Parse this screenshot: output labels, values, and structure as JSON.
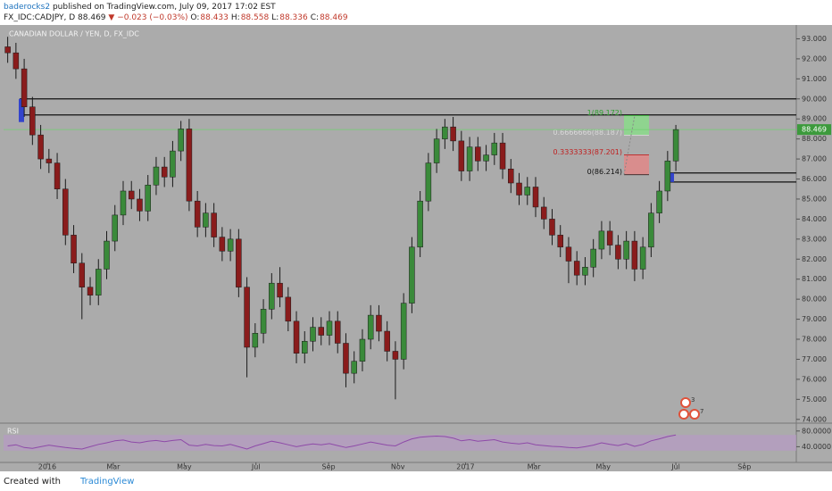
{
  "header": {
    "publisher": "baderocks2",
    "published": "published on TradingView.com, July 09, 2017 17:02 EST",
    "symbol": "FX_IDC:CADJPY, D",
    "last": "88.469",
    "arrow": "▼",
    "change": "−0.023 (−0.03%)",
    "ohlc": [
      {
        "label": "O:",
        "value": "88.433"
      },
      {
        "label": "H:",
        "value": "88.558"
      },
      {
        "label": "L:",
        "value": "88.336"
      },
      {
        "label": "C:",
        "value": "88.469"
      }
    ]
  },
  "footer": {
    "created": "Created with",
    "brand": "TradingView"
  },
  "badges": [
    "3",
    "7"
  ],
  "chart_data": [
    {
      "type": "candlestick",
      "title": "CANADIAN DOLLAR / YEN, D, FX_IDC",
      "up_color": "#3a8a3a",
      "down_color": "#8a1c1c",
      "open": [
        92.6,
        92.3,
        91.5,
        89.6,
        88.2,
        87.0,
        86.8,
        85.5,
        83.2,
        81.8,
        80.6,
        80.2,
        81.5,
        82.9,
        84.2,
        85.4,
        85.0,
        84.4,
        85.7,
        86.6,
        86.1,
        87.4,
        88.5,
        84.9,
        83.6,
        84.3,
        83.1,
        82.4,
        83.0,
        80.6,
        77.6,
        78.3,
        79.5,
        80.8,
        80.1,
        78.9,
        77.3,
        77.9,
        78.6,
        78.2,
        78.9,
        77.8,
        76.3,
        76.9,
        78.0,
        79.2,
        78.4,
        77.4,
        77.0,
        79.8,
        82.6,
        84.9,
        86.8,
        88.0,
        88.6,
        87.9,
        86.4,
        87.6,
        86.9,
        87.2,
        87.8,
        86.5,
        85.8,
        85.2,
        85.6,
        84.6,
        84.0,
        83.2,
        82.6,
        81.9,
        81.2,
        81.6,
        82.5,
        83.4,
        82.7,
        82.0,
        82.9,
        81.5,
        82.6,
        84.3,
        85.4,
        86.9
      ],
      "high": [
        93.1,
        92.8,
        92.0,
        90.1,
        88.7,
        87.5,
        87.3,
        86.0,
        83.7,
        82.3,
        81.1,
        82.0,
        83.4,
        84.7,
        85.9,
        85.9,
        85.5,
        86.2,
        87.1,
        87.1,
        87.9,
        88.9,
        89.0,
        85.4,
        84.8,
        84.8,
        83.6,
        83.5,
        83.5,
        81.1,
        78.8,
        80.0,
        81.3,
        81.6,
        80.6,
        79.4,
        78.4,
        79.1,
        79.1,
        79.4,
        79.4,
        78.3,
        77.4,
        78.5,
        79.7,
        79.7,
        78.9,
        77.9,
        80.3,
        83.1,
        85.4,
        87.3,
        88.5,
        89.0,
        89.1,
        88.4,
        88.1,
        88.1,
        87.7,
        88.3,
        88.3,
        87.0,
        86.3,
        86.1,
        86.1,
        85.1,
        84.5,
        83.7,
        83.1,
        82.4,
        82.1,
        83.0,
        83.9,
        83.9,
        83.2,
        83.4,
        83.4,
        83.1,
        84.8,
        85.9,
        87.4,
        88.7
      ],
      "low": [
        91.8,
        91.0,
        89.1,
        87.7,
        86.5,
        86.3,
        85.0,
        82.7,
        81.3,
        79.0,
        79.7,
        79.7,
        81.0,
        82.4,
        83.7,
        84.5,
        83.9,
        83.9,
        85.2,
        85.6,
        85.6,
        86.9,
        84.4,
        83.1,
        83.1,
        82.6,
        81.9,
        81.9,
        80.1,
        76.1,
        77.1,
        77.8,
        79.0,
        79.6,
        78.4,
        76.8,
        76.8,
        77.4,
        77.7,
        77.7,
        77.3,
        75.6,
        75.8,
        76.4,
        77.5,
        77.9,
        76.9,
        75.0,
        76.5,
        79.3,
        82.1,
        84.4,
        86.3,
        87.5,
        87.4,
        85.9,
        85.9,
        86.4,
        86.4,
        86.7,
        86.0,
        85.3,
        84.7,
        84.7,
        84.1,
        83.5,
        82.7,
        82.1,
        80.8,
        80.7,
        80.7,
        81.1,
        82.0,
        82.2,
        81.5,
        81.5,
        80.9,
        81.0,
        82.1,
        83.8,
        84.9,
        86.4
      ],
      "close": [
        92.3,
        91.5,
        89.6,
        88.2,
        87.0,
        86.8,
        85.5,
        83.2,
        81.8,
        80.6,
        80.2,
        81.5,
        82.9,
        84.2,
        85.4,
        85.0,
        84.4,
        85.7,
        86.6,
        86.1,
        87.4,
        88.5,
        84.9,
        83.6,
        84.3,
        83.1,
        82.4,
        83.0,
        80.6,
        77.6,
        78.3,
        79.5,
        80.8,
        80.1,
        78.9,
        77.3,
        77.9,
        78.6,
        78.2,
        78.9,
        77.8,
        76.3,
        76.9,
        78.0,
        79.2,
        78.4,
        77.4,
        77.0,
        79.8,
        82.6,
        84.9,
        86.8,
        88.0,
        88.6,
        87.9,
        86.4,
        87.6,
        86.9,
        87.2,
        87.8,
        86.5,
        85.8,
        85.2,
        85.6,
        84.6,
        84.0,
        83.2,
        82.6,
        81.9,
        81.2,
        81.6,
        82.5,
        83.4,
        82.7,
        82.0,
        82.9,
        81.5,
        82.6,
        84.3,
        85.4,
        86.9,
        88.469
      ],
      "xlim": [
        -0.5,
        95.6
      ],
      "xticks": [
        {
          "value": 4.8,
          "label": "2016"
        },
        {
          "value": 12.8,
          "label": "Mar"
        },
        {
          "value": 21.4,
          "label": "May"
        },
        {
          "value": 30.1,
          "label": "Jul"
        },
        {
          "value": 38.9,
          "label": "Sep"
        },
        {
          "value": 47.3,
          "label": "Nov"
        },
        {
          "value": 55.5,
          "label": "2017"
        },
        {
          "value": 63.8,
          "label": "Mar"
        },
        {
          "value": 72.2,
          "label": "May"
        },
        {
          "value": 81.0,
          "label": "Jul"
        },
        {
          "value": 89.3,
          "label": "Sep"
        }
      ],
      "ylim": [
        73.9,
        93.6
      ],
      "yticks": [
        {
          "value": 93,
          "label": "93.000"
        },
        {
          "value": 92,
          "label": "92.000"
        },
        {
          "value": 91,
          "label": "91.000"
        },
        {
          "value": 90,
          "label": "90.000"
        },
        {
          "value": 89,
          "label": "89.000"
        },
        {
          "value": 88,
          "label": "88.000"
        },
        {
          "value": 87,
          "label": "87.000"
        },
        {
          "value": 86,
          "label": "86.000"
        },
        {
          "value": 85,
          "label": "85.000"
        },
        {
          "value": 84,
          "label": "84.000"
        },
        {
          "value": 83,
          "label": "83.000"
        },
        {
          "value": 82,
          "label": "82.000"
        },
        {
          "value": 81,
          "label": "81.000"
        },
        {
          "value": 80,
          "label": "80.000"
        },
        {
          "value": 79,
          "label": "79.000"
        },
        {
          "value": 78,
          "label": "78.000"
        },
        {
          "value": 77,
          "label": "77.000"
        },
        {
          "value": 76,
          "label": "76.000"
        },
        {
          "value": 75,
          "label": "75.000"
        },
        {
          "value": 74,
          "label": "74.000"
        }
      ],
      "grid": false,
      "levels": [
        90.0,
        89.2,
        86.3,
        85.85
      ],
      "last_price": 88.469,
      "fib": [
        {
          "value": 89.172,
          "label": "1(89.172)"
        },
        {
          "value": 88.187,
          "label": "0.6666666(88.187)"
        },
        {
          "value": 87.201,
          "label": "0.3333333(87.201)"
        },
        {
          "value": 86.214,
          "label": "0(86.214)"
        }
      ]
    },
    {
      "type": "line",
      "title": "RSI",
      "color": "#8e4aa8",
      "band": [
        30,
        70
      ],
      "values": [
        42,
        45,
        38,
        36,
        40,
        44,
        41,
        38,
        36,
        34,
        40,
        46,
        50,
        55,
        57,
        52,
        50,
        54,
        56,
        53,
        56,
        58,
        44,
        42,
        46,
        43,
        42,
        46,
        40,
        34,
        42,
        48,
        54,
        50,
        45,
        40,
        44,
        47,
        45,
        48,
        43,
        38,
        42,
        47,
        52,
        48,
        44,
        42,
        52,
        60,
        64,
        66,
        67,
        66,
        62,
        55,
        58,
        54,
        56,
        58,
        52,
        49,
        47,
        50,
        45,
        43,
        41,
        40,
        38,
        37,
        40,
        44,
        50,
        46,
        43,
        48,
        41,
        46,
        55,
        60,
        66,
        70
      ],
      "xlim": [
        -0.5,
        95.6
      ],
      "ylim": [
        0,
        100
      ],
      "yticks": [
        {
          "value": 80,
          "label": "80.0000"
        },
        {
          "value": 40,
          "label": "40.0000"
        }
      ]
    }
  ]
}
